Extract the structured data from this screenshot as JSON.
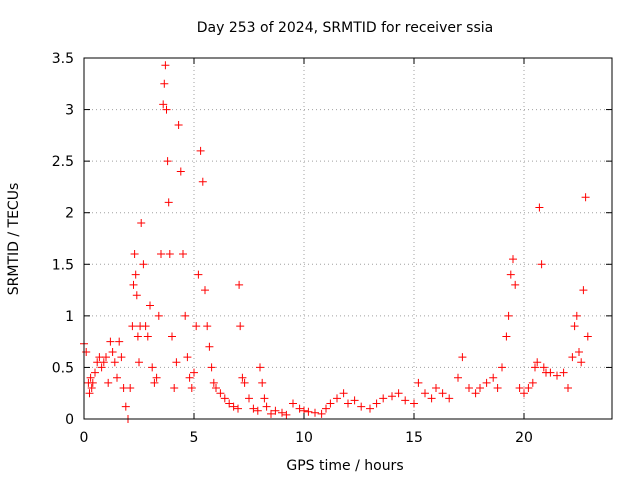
{
  "chart_data": {
    "type": "scatter",
    "title": "Day 253 of 2024, SRMTID for receiver ssia",
    "xlabel": "GPS time / hours",
    "ylabel": "SRMTID / TECUs",
    "xlim": [
      0,
      24
    ],
    "ylim": [
      0,
      3.5
    ],
    "x_ticks": [
      0,
      5,
      10,
      15,
      20
    ],
    "x_tick_labels": [
      "0",
      "5",
      "10",
      "15",
      "20"
    ],
    "y_ticks": [
      0,
      0.5,
      1,
      1.5,
      2,
      2.5,
      3,
      3.5
    ],
    "y_tick_labels": [
      "0",
      "0.5",
      "1",
      "1.5",
      "2",
      "2.5",
      "3",
      "3.5"
    ],
    "grid": true,
    "marker": "plus",
    "series": [
      {
        "name": "SRMTID",
        "color": "#ff0000",
        "x": [
          0.0,
          0.1,
          0.2,
          0.25,
          0.3,
          0.35,
          0.4,
          0.5,
          0.6,
          0.7,
          0.8,
          0.9,
          1.0,
          1.1,
          1.2,
          1.3,
          1.4,
          1.5,
          1.6,
          1.7,
          1.8,
          1.9,
          2.0,
          2.1,
          2.2,
          2.25,
          2.3,
          2.35,
          2.4,
          2.45,
          2.5,
          2.55,
          2.6,
          2.7,
          2.8,
          2.9,
          3.0,
          3.1,
          3.2,
          3.3,
          3.4,
          3.5,
          3.6,
          3.65,
          3.7,
          3.75,
          3.8,
          3.85,
          3.9,
          4.0,
          4.1,
          4.2,
          4.3,
          4.4,
          4.5,
          4.6,
          4.7,
          4.8,
          4.9,
          5.0,
          5.1,
          5.2,
          5.3,
          5.4,
          5.5,
          5.6,
          5.7,
          5.8,
          5.9,
          6.0,
          6.2,
          6.4,
          6.6,
          6.8,
          7.0,
          7.05,
          7.1,
          7.2,
          7.3,
          7.5,
          7.7,
          7.9,
          8.0,
          8.1,
          8.2,
          8.3,
          8.5,
          8.7,
          9.0,
          9.2,
          9.5,
          9.8,
          10.0,
          10.2,
          10.5,
          10.8,
          11.0,
          11.2,
          11.5,
          11.8,
          12.0,
          12.3,
          12.6,
          13.0,
          13.3,
          13.6,
          14.0,
          14.3,
          14.6,
          15.0,
          15.2,
          15.5,
          15.8,
          16.0,
          16.3,
          16.6,
          17.0,
          17.2,
          17.5,
          17.8,
          18.0,
          18.3,
          18.6,
          18.8,
          19.0,
          19.2,
          19.3,
          19.4,
          19.5,
          19.6,
          19.8,
          20.0,
          20.2,
          20.4,
          20.5,
          20.6,
          20.7,
          20.8,
          20.9,
          21.0,
          21.2,
          21.5,
          21.8,
          22.0,
          22.2,
          22.3,
          22.4,
          22.5,
          22.6,
          22.7,
          22.8,
          22.9
        ],
        "y": [
          0.73,
          0.65,
          0.35,
          0.25,
          0.4,
          0.3,
          0.35,
          0.45,
          0.55,
          0.6,
          0.5,
          0.55,
          0.6,
          0.35,
          0.75,
          0.65,
          0.55,
          0.4,
          0.75,
          0.6,
          0.3,
          0.12,
          0.0,
          0.3,
          0.9,
          1.3,
          1.6,
          1.4,
          1.2,
          0.8,
          0.55,
          0.9,
          1.9,
          1.5,
          0.9,
          0.8,
          1.1,
          0.5,
          0.35,
          0.4,
          1.0,
          1.6,
          3.05,
          3.25,
          3.43,
          3.0,
          2.5,
          2.1,
          1.6,
          0.8,
          0.3,
          0.55,
          2.85,
          2.4,
          1.6,
          1.0,
          0.6,
          0.4,
          0.3,
          0.45,
          0.9,
          1.4,
          2.6,
          2.3,
          1.25,
          0.9,
          0.7,
          0.5,
          0.35,
          0.3,
          0.25,
          0.2,
          0.15,
          0.12,
          0.1,
          1.3,
          0.9,
          0.4,
          0.35,
          0.2,
          0.1,
          0.08,
          0.5,
          0.35,
          0.2,
          0.12,
          0.05,
          0.08,
          0.06,
          0.04,
          0.15,
          0.1,
          0.08,
          0.07,
          0.06,
          0.05,
          0.1,
          0.15,
          0.2,
          0.25,
          0.15,
          0.18,
          0.12,
          0.1,
          0.15,
          0.2,
          0.22,
          0.25,
          0.18,
          0.15,
          0.35,
          0.25,
          0.2,
          0.3,
          0.25,
          0.2,
          0.4,
          0.6,
          0.3,
          0.25,
          0.3,
          0.35,
          0.4,
          0.3,
          0.5,
          0.8,
          1.0,
          1.4,
          1.55,
          1.3,
          0.3,
          0.25,
          0.3,
          0.35,
          0.5,
          0.55,
          2.05,
          1.5,
          0.5,
          0.45,
          0.45,
          0.42,
          0.45,
          0.3,
          0.6,
          0.9,
          1.0,
          0.65,
          0.55,
          1.25,
          2.15,
          0.8
        ]
      }
    ]
  }
}
